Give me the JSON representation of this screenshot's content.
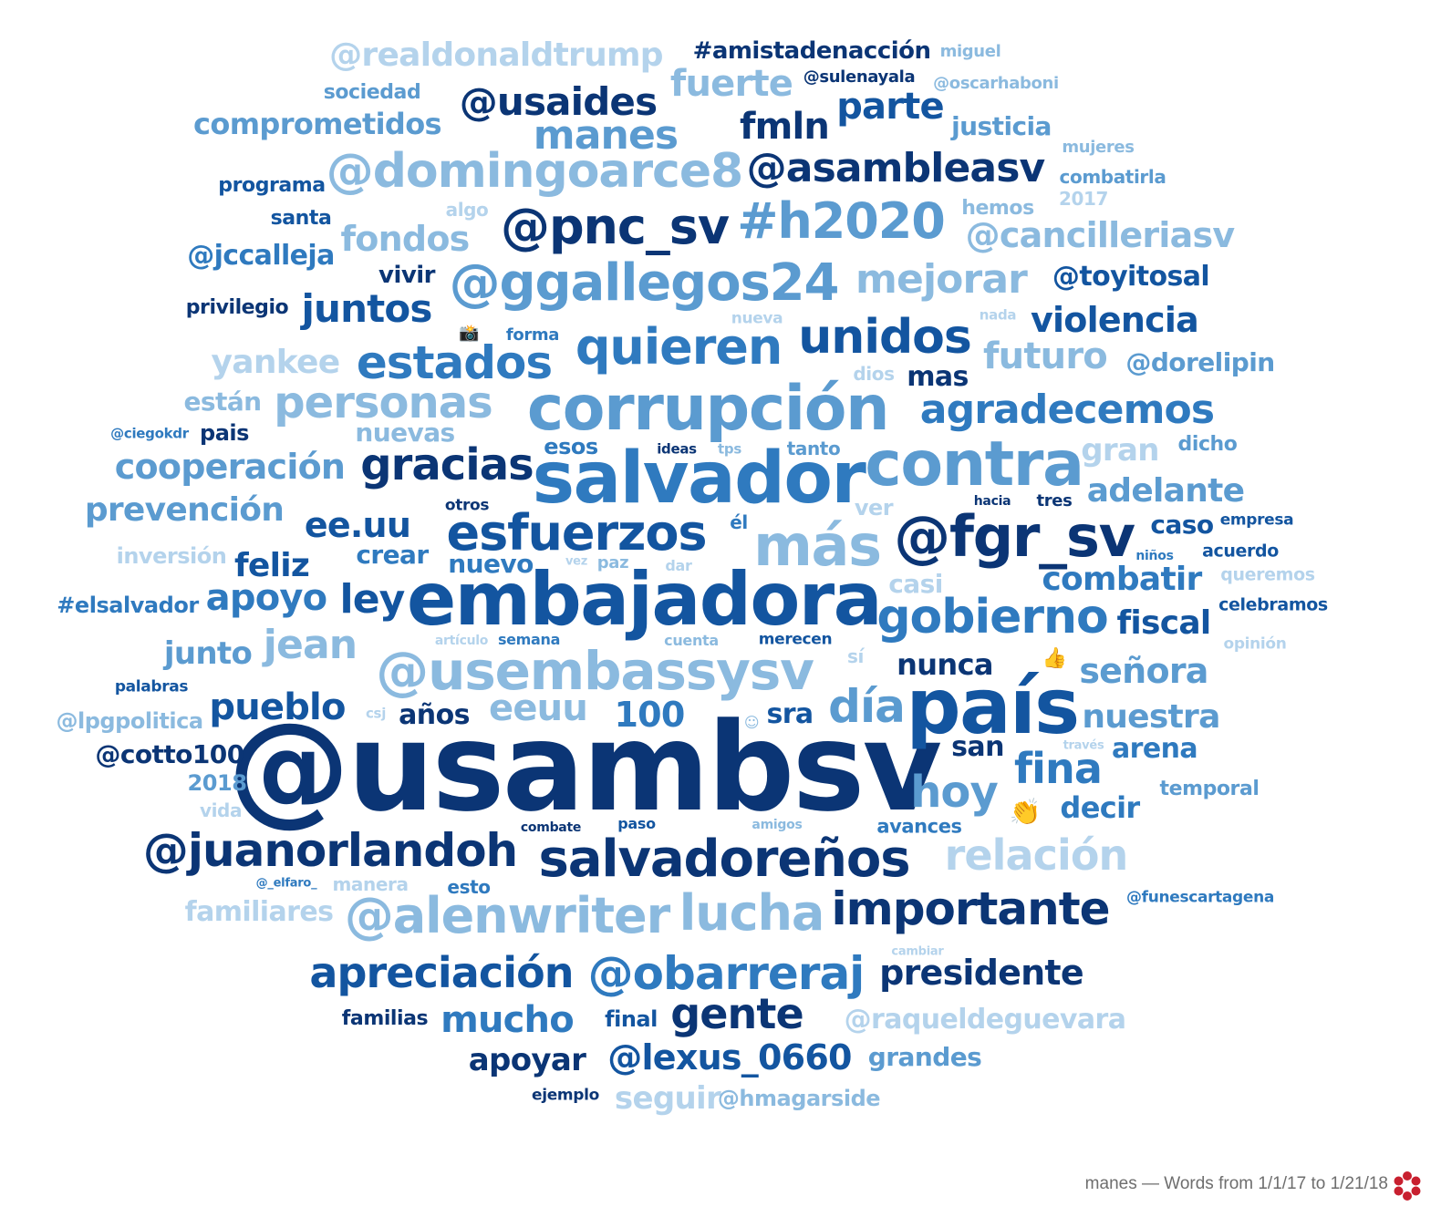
{
  "footer": {
    "caption": "manes — Words from 1/1/17 to 1/21/18"
  },
  "colors": {
    "c1": "#0b3575",
    "c2": "#1355a0",
    "c3": "#2f7abf",
    "c4": "#5b9bd0",
    "c5": "#8bbadf",
    "c6": "#b4d3ec",
    "logo": "#c8202f"
  },
  "words": [
    {
      "t": "@usambsv",
      "c": "c1"
    },
    {
      "t": "país",
      "c": "c2"
    },
    {
      "t": "embajadora",
      "c": "c2"
    },
    {
      "t": "salvador",
      "c": "c3"
    },
    {
      "t": "corrupción",
      "c": "c4"
    },
    {
      "t": "contra",
      "c": "c4"
    },
    {
      "t": "@fgr_sv",
      "c": "c1"
    },
    {
      "t": "más",
      "c": "c5"
    },
    {
      "t": "@usembassysv",
      "c": "c5"
    },
    {
      "t": "salvadoreños",
      "c": "c1"
    },
    {
      "t": "esfuerzos",
      "c": "c2"
    },
    {
      "t": "quieren",
      "c": "c3"
    },
    {
      "t": "@ggallegos24",
      "c": "c4"
    },
    {
      "t": "@pnc_sv",
      "c": "c1"
    },
    {
      "t": "#h2020",
      "c": "c4"
    },
    {
      "t": "@domingoarce8",
      "c": "c5"
    },
    {
      "t": "@asambleasv",
      "c": "c1"
    },
    {
      "t": "@alenwriter",
      "c": "c5"
    },
    {
      "t": "lucha",
      "c": "c5"
    },
    {
      "t": "importante",
      "c": "c1"
    },
    {
      "t": "@juanorlandoh",
      "c": "c1"
    },
    {
      "t": "@obarreraj",
      "c": "c3"
    },
    {
      "t": "apreciación",
      "c": "c2"
    },
    {
      "t": "gobierno",
      "c": "c3"
    },
    {
      "t": "unidos",
      "c": "c2"
    },
    {
      "t": "estados",
      "c": "c3"
    },
    {
      "t": "personas",
      "c": "c5"
    },
    {
      "t": "agradecemos",
      "c": "c3"
    },
    {
      "t": "gracias",
      "c": "c1"
    },
    {
      "t": "día",
      "c": "c4"
    },
    {
      "t": "gente",
      "c": "c1"
    },
    {
      "t": "relación",
      "c": "c6"
    },
    {
      "t": "@usaides",
      "c": "c1"
    },
    {
      "t": "manes",
      "c": "c4"
    },
    {
      "t": "mejorar",
      "c": "c5"
    },
    {
      "t": "fuerte",
      "c": "c5"
    },
    {
      "t": "@cancilleriasv",
      "c": "c5"
    },
    {
      "t": "hoy",
      "c": "c4"
    },
    {
      "t": "fina",
      "c": "c3"
    },
    {
      "t": "presidente",
      "c": "c1"
    },
    {
      "t": "@lexus_0660",
      "c": "c2"
    },
    {
      "t": "mucho",
      "c": "c3"
    },
    {
      "t": "ley",
      "c": "c2"
    },
    {
      "t": "jean",
      "c": "c5"
    },
    {
      "t": "apoyo",
      "c": "c3"
    },
    {
      "t": "juntos",
      "c": "c2"
    },
    {
      "t": "fmln",
      "c": "c1"
    },
    {
      "t": "parte",
      "c": "c2"
    },
    {
      "t": "fondos",
      "c": "c5"
    },
    {
      "t": "ee.uu",
      "c": "c2"
    },
    {
      "t": "eeuu",
      "c": "c5"
    },
    {
      "t": "100",
      "c": "c3"
    },
    {
      "t": "pueblo",
      "c": "c2"
    },
    {
      "t": "violencia",
      "c": "c2"
    },
    {
      "t": "futuro",
      "c": "c5"
    },
    {
      "t": "combatir",
      "c": "c3"
    },
    {
      "t": "@realdonaldtrump",
      "c": "c6"
    },
    {
      "t": "cooperación",
      "c": "c4"
    },
    {
      "t": "prevención",
      "c": "c4"
    },
    {
      "t": "comprometidos",
      "c": "c4"
    },
    {
      "t": "adelante",
      "c": "c4"
    },
    {
      "t": "señora",
      "c": "c4"
    },
    {
      "t": "nuestra",
      "c": "c4"
    },
    {
      "t": "fiscal",
      "c": "c2"
    },
    {
      "t": "apoyar",
      "c": "c1"
    },
    {
      "t": "seguir",
      "c": "c6"
    },
    {
      "t": "feliz",
      "c": "c2"
    },
    {
      "t": "yankee",
      "c": "c6"
    },
    {
      "t": "@toyitosal",
      "c": "c2"
    },
    {
      "t": "nunca",
      "c": "c1"
    },
    {
      "t": "gran",
      "c": "c6"
    },
    {
      "t": "@raqueldeguevara",
      "c": "c6"
    },
    {
      "t": "#amistadenacción",
      "c": "c1"
    },
    {
      "t": "@jccalleja",
      "c": "c3"
    },
    {
      "t": "junto",
      "c": "c4"
    },
    {
      "t": "@cotto100",
      "c": "c1"
    },
    {
      "t": "decir",
      "c": "c3"
    },
    {
      "t": "familiares",
      "c": "c6"
    },
    {
      "t": "@dorelipin",
      "c": "c4"
    },
    {
      "t": "crear",
      "c": "c3"
    },
    {
      "t": "nuevo",
      "c": "c3"
    },
    {
      "t": "años",
      "c": "c1"
    },
    {
      "t": "arena",
      "c": "c3"
    },
    {
      "t": "caso",
      "c": "c2"
    },
    {
      "t": "sra",
      "c": "c2"
    },
    {
      "t": "san",
      "c": "c1"
    },
    {
      "t": "mas",
      "c": "c1"
    },
    {
      "t": "nuevas",
      "c": "c5"
    },
    {
      "t": "están",
      "c": "c5"
    },
    {
      "t": "justicia",
      "c": "c4"
    },
    {
      "t": "grandes",
      "c": "c4"
    },
    {
      "t": "esos",
      "c": "c3"
    },
    {
      "t": "casi",
      "c": "c6"
    },
    {
      "t": "@lpgpolitica",
      "c": "c5"
    },
    {
      "t": "2018",
      "c": "c4"
    },
    {
      "t": "#elsalvador",
      "c": "c3"
    },
    {
      "t": "inversión",
      "c": "c6"
    },
    {
      "t": "pais",
      "c": "c1"
    },
    {
      "t": "vivir",
      "c": "c1"
    },
    {
      "t": "privilegio",
      "c": "c1"
    },
    {
      "t": "santa",
      "c": "c2"
    },
    {
      "t": "programa",
      "c": "c2"
    },
    {
      "t": "sociedad",
      "c": "c4"
    },
    {
      "t": "@hmagarside",
      "c": "c5"
    },
    {
      "t": "familias",
      "c": "c1"
    },
    {
      "t": "final",
      "c": "c2"
    },
    {
      "t": "@sulenayala",
      "c": "c1"
    },
    {
      "t": "@oscarhaboni",
      "c": "c5"
    },
    {
      "t": "miguel",
      "c": "c5"
    },
    {
      "t": "mujeres",
      "c": "c5"
    },
    {
      "t": "combatirla",
      "c": "c4"
    },
    {
      "t": "2017",
      "c": "c6"
    },
    {
      "t": "hemos",
      "c": "c5"
    },
    {
      "t": "algo",
      "c": "c6"
    },
    {
      "t": "forma",
      "c": "c3"
    },
    {
      "t": "nueva",
      "c": "c6"
    },
    {
      "t": "nada",
      "c": "c6"
    },
    {
      "t": "dios",
      "c": "c6"
    },
    {
      "t": "ideas",
      "c": "c1"
    },
    {
      "t": "tps",
      "c": "c5"
    },
    {
      "t": "tanto",
      "c": "c4"
    },
    {
      "t": "dicho",
      "c": "c4"
    },
    {
      "t": "otros",
      "c": "c1"
    },
    {
      "t": "hacia",
      "c": "c1"
    },
    {
      "t": "tres",
      "c": "c1"
    },
    {
      "t": "empresa",
      "c": "c2"
    },
    {
      "t": "ver",
      "c": "c6"
    },
    {
      "t": "él",
      "c": "c3"
    },
    {
      "t": "vez",
      "c": "c6"
    },
    {
      "t": "paz",
      "c": "c5"
    },
    {
      "t": "dar",
      "c": "c6"
    },
    {
      "t": "niños",
      "c": "c3"
    },
    {
      "t": "acuerdo",
      "c": "c2"
    },
    {
      "t": "queremos",
      "c": "c6"
    },
    {
      "t": "celebramos",
      "c": "c2"
    },
    {
      "t": "artículo",
      "c": "c6"
    },
    {
      "t": "semana",
      "c": "c3"
    },
    {
      "t": "cuenta",
      "c": "c5"
    },
    {
      "t": "merecen",
      "c": "c2"
    },
    {
      "t": "sí",
      "c": "c6"
    },
    {
      "t": "opinión",
      "c": "c6"
    },
    {
      "t": "palabras",
      "c": "c2"
    },
    {
      "t": "csj",
      "c": "c6"
    },
    {
      "t": "través",
      "c": "c6"
    },
    {
      "t": "temporal",
      "c": "c4"
    },
    {
      "t": "vida",
      "c": "c6"
    },
    {
      "t": "combate",
      "c": "c1"
    },
    {
      "t": "paso",
      "c": "c2"
    },
    {
      "t": "amigos",
      "c": "c5"
    },
    {
      "t": "avances",
      "c": "c3"
    },
    {
      "t": "@_elfaro_",
      "c": "c3"
    },
    {
      "t": "manera",
      "c": "c6"
    },
    {
      "t": "esto",
      "c": "c3"
    },
    {
      "t": "@funescartagena",
      "c": "c3"
    },
    {
      "t": "cambiar",
      "c": "c6"
    },
    {
      "t": "ejemplo",
      "c": "c1"
    },
    {
      "t": "@ciegokdr",
      "c": "c3"
    }
  ]
}
